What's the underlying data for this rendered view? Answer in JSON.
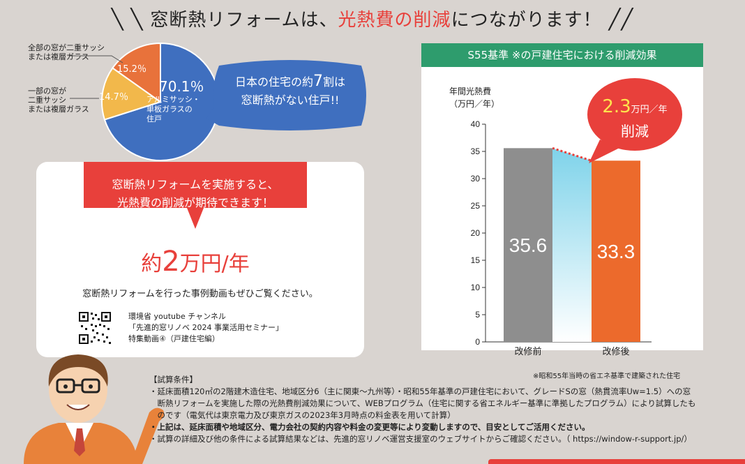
{
  "headline": {
    "part1": "窓断熱リフォームは、",
    "highlight": "光熱費の削減",
    "part2": "につながります！"
  },
  "pie": {
    "slices": [
      {
        "label": "70.1％",
        "desc": "アルミサッシ・\n単板ガラスの\n住戸",
        "value": 70.1,
        "color": "#3f6fbf"
      },
      {
        "label": "14.7％",
        "value": 14.7,
        "color": "#f2b84b"
      },
      {
        "label": "15.2％",
        "value": 15.2,
        "color": "#e8723b"
      }
    ],
    "callout_all": [
      "全部の窓が二重サッシ",
      "または複層ガラス"
    ],
    "callout_partial": [
      "一部の窓が",
      "二重サッシ",
      "または複層ガラス"
    ],
    "inner_desc": [
      "アルミサッシ・",
      "単板ガラスの",
      "住戸"
    ]
  },
  "bubble": {
    "line1_a": "日本の住宅の約",
    "line1_num": "7",
    "line1_b": "割は",
    "line2": "窓断熱がない住戸!!"
  },
  "card": {
    "banner_line1": "窓断熱リフォームを実施すると、",
    "banner_line2": "光熱費の削減が期待できます！",
    "amount_prefix": "約",
    "amount_num": "2",
    "amount_suffix": "万円/年",
    "subline": "窓断熱リフォームを行った事例動画もぜひご覧ください。",
    "yt_line1": "環境省 youtube チャンネル",
    "yt_line2": "「先進的窓リノベ 2024 事業活用セミナー」",
    "yt_line3": "特集動画④（戸建住宅編）"
  },
  "chart_data": {
    "type": "bar",
    "title": "S55基準 ※の戸建住宅における削減効果",
    "ylabel_line1": "年間光熱費",
    "ylabel_line2": "（万円／年）",
    "ylim": [
      0,
      40
    ],
    "yticks": [
      0,
      5,
      10,
      15,
      20,
      25,
      30,
      35,
      40
    ],
    "categories": [
      "改修前",
      "改修後"
    ],
    "values": [
      35.6,
      33.3
    ],
    "value_labels": [
      "35.6",
      "33.3"
    ],
    "colors": [
      "#8e8e8e",
      "#ec6a2c"
    ],
    "reduction_num": "2.3",
    "reduction_unit": "万円／年",
    "reduction_label": "削減",
    "footnote": "※昭和55年当時の省エネ基準で建築された住宅"
  },
  "conditions": {
    "title": "【試算条件】",
    "line1": "・延床面積120㎡の2階建木造住宅、地域区分6（主に関東〜九州等）・昭和55年基準の戸建住宅において、グレードSの窓（熱貫流率Uw=1.5）への窓",
    "line2": "　断熱リフォームを実施した際の光熱費削減効果について、WEBプログラム（住宅に関する省エネルギー基準に準拠したプログラム）により試算したも",
    "line3": "　のです（電気代は東京電力及び東京ガスの2023年3月時点の料金表を用いて計算）",
    "line4": "・上記は、延床面積や地域区分、電力会社の契約内容や料金の変更等により変動しますので、目安としてご活用ください。",
    "line5": "・試算の詳細及び他の条件による試算結果などは、先進的窓リノベ運営支援室のウェブサイトからご確認ください。（ https://window-r-support.jp/）"
  }
}
